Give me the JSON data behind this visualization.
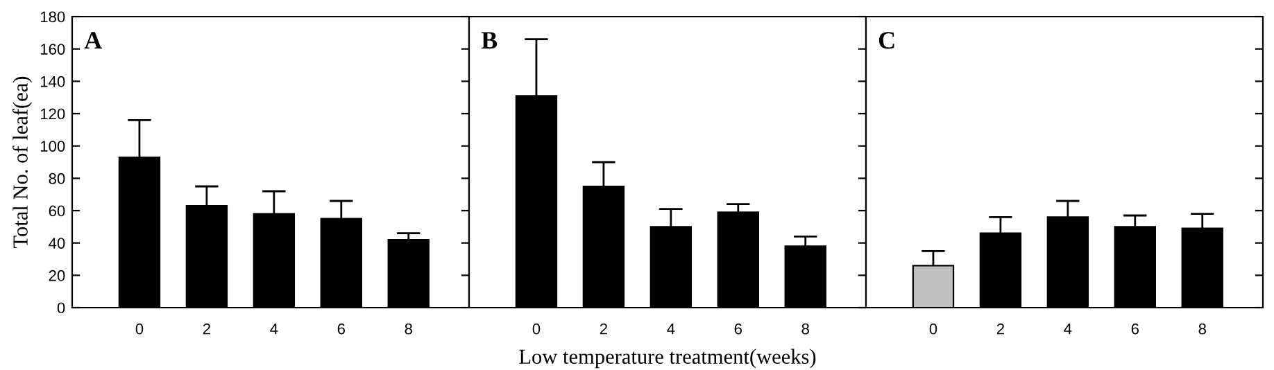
{
  "chart_data": [
    {
      "type": "bar",
      "title": "A",
      "ylabel": "Total No. of leaf(ea)",
      "categories": [
        "0",
        "2",
        "4",
        "6",
        "8"
      ],
      "values": [
        93,
        63,
        58,
        55,
        42
      ],
      "errors": [
        23,
        12,
        14,
        11,
        4
      ],
      "colors": [
        "#000000",
        "#000000",
        "#000000",
        "#000000",
        "#000000"
      ],
      "ylim": [
        0,
        180
      ],
      "yticks": [
        0,
        20,
        40,
        60,
        80,
        100,
        120,
        140,
        160,
        180
      ],
      "grid": false,
      "legend": false
    },
    {
      "type": "bar",
      "title": "B",
      "xlabel": "Low temperature treatment(weeks)",
      "categories": [
        "0",
        "2",
        "4",
        "6",
        "8"
      ],
      "values": [
        131,
        75,
        50,
        59,
        38
      ],
      "errors": [
        35,
        15,
        11,
        5,
        6
      ],
      "colors": [
        "#000000",
        "#000000",
        "#000000",
        "#000000",
        "#000000"
      ],
      "ylim": [
        0,
        180
      ],
      "yticks": [
        0,
        20,
        40,
        60,
        80,
        100,
        120,
        140,
        160,
        180
      ],
      "tick_labels": "x",
      "grid": false,
      "legend": false
    },
    {
      "type": "bar",
      "title": "C",
      "categories": [
        "0",
        "2",
        "4",
        "6",
        "8"
      ],
      "values": [
        26,
        46,
        56,
        50,
        49
      ],
      "errors": [
        9,
        10,
        10,
        7,
        9
      ],
      "colors": [
        "#c0c0c0",
        "#000000",
        "#000000",
        "#000000",
        "#000000"
      ],
      "ylim": [
        0,
        180
      ],
      "yticks": [
        0,
        20,
        40,
        60,
        80,
        100,
        120,
        140,
        160,
        180
      ],
      "tick_labels": "x",
      "grid": false,
      "legend": false
    }
  ]
}
